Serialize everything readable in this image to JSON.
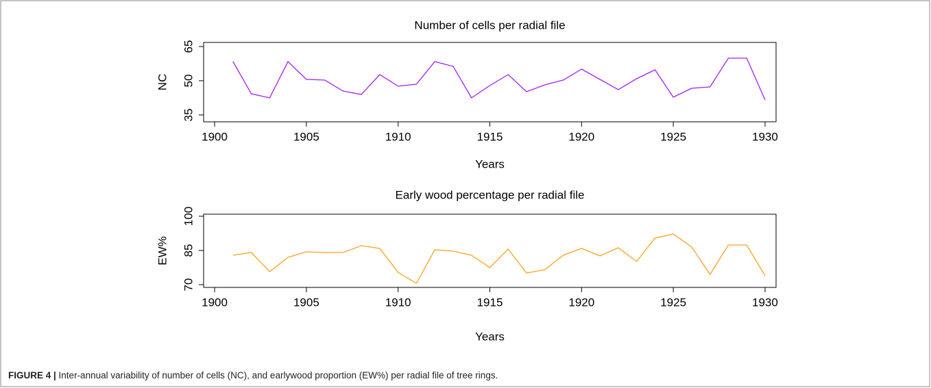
{
  "chart_data": [
    {
      "type": "line",
      "title": "Number of cells per radial file",
      "xlabel": "Years",
      "ylabel": "NC",
      "x": [
        1901,
        1902,
        1903,
        1904,
        1905,
        1906,
        1907,
        1908,
        1909,
        1910,
        1911,
        1912,
        1913,
        1914,
        1915,
        1916,
        1917,
        1918,
        1919,
        1920,
        1921,
        1922,
        1923,
        1924,
        1925,
        1926,
        1927,
        1928,
        1929,
        1930
      ],
      "series": [
        {
          "color": "#a020f0",
          "values": [
            58.4,
            44.3,
            42.5,
            58.4,
            50.6,
            50.3,
            45.5,
            44.0,
            52.7,
            47.6,
            48.5,
            58.4,
            56.3,
            42.5,
            47.9,
            52.7,
            45.2,
            48.2,
            50.3,
            55.1,
            50.6,
            46.1,
            50.9,
            54.8,
            42.8,
            46.7,
            47.3,
            59.9,
            59.9,
            41.6
          ]
        }
      ],
      "xlim": [
        1899.4,
        1930.6
      ],
      "xticks": [
        1900,
        1905,
        1910,
        1915,
        1920,
        1925,
        1930
      ],
      "ylim": [
        32,
        66.8
      ],
      "yticks": [
        35,
        50,
        65
      ]
    },
    {
      "type": "line",
      "title": "Early wood percentage per radial file",
      "xlabel": "Years",
      "ylabel": "EW%",
      "x": [
        1901,
        1902,
        1903,
        1904,
        1905,
        1906,
        1907,
        1908,
        1909,
        1910,
        1911,
        1912,
        1913,
        1914,
        1915,
        1916,
        1917,
        1918,
        1919,
        1920,
        1921,
        1922,
        1923,
        1924,
        1925,
        1926,
        1927,
        1928,
        1929,
        1930
      ],
      "series": [
        {
          "color": "#ffa01e",
          "values": [
            82.9,
            84.1,
            75.7,
            82.0,
            84.4,
            84.1,
            84.1,
            87.1,
            85.9,
            75.4,
            70.6,
            85.3,
            84.7,
            82.9,
            77.5,
            85.6,
            75.1,
            76.6,
            82.9,
            85.9,
            82.6,
            86.2,
            80.2,
            90.4,
            92.2,
            86.5,
            74.5,
            87.4,
            87.4,
            73.9
          ]
        }
      ],
      "xlim": [
        1899.4,
        1930.6
      ],
      "xticks": [
        1900,
        1905,
        1910,
        1915,
        1920,
        1925,
        1930
      ],
      "ylim": [
        68.8,
        100.9
      ],
      "yticks": [
        70,
        85,
        100
      ]
    }
  ],
  "caption": {
    "label": "FIGURE 4 |",
    "text": " Inter-annual variability of number of cells (NC), and earlywood proportion (EW%) per radial file of tree rings."
  }
}
